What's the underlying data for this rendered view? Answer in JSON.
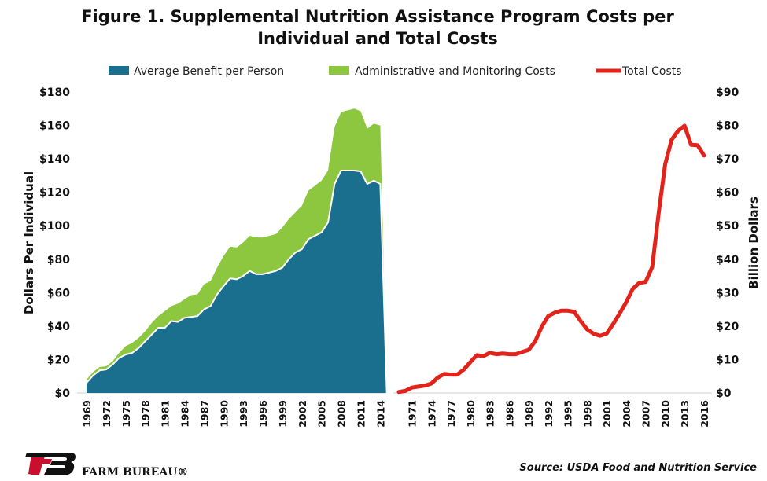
{
  "chart_data": {
    "type": "area",
    "title_line1": "Figure 1. Supplemental Nutrition Assistance Program Costs per",
    "title_line2": "Individual and Total Costs",
    "ylabel_left": "Dollars Per Individual",
    "ylabel_right": "Billion Dollars",
    "left_axis": {
      "min": 0,
      "max": 180,
      "ticks": [
        "$0",
        "$20",
        "$40",
        "$60",
        "$80",
        "$100",
        "$120",
        "$140",
        "$160",
        "$180"
      ]
    },
    "right_axis": {
      "min": 0,
      "max": 90,
      "ticks": [
        "$0",
        "$10",
        "$20",
        "$30",
        "$40",
        "$50",
        "$60",
        "$70",
        "$80",
        "$90"
      ]
    },
    "legend_position": "top",
    "legend": [
      "Average Benefit per Person",
      "Administrative and Monitoring Costs",
      "Total Costs"
    ],
    "colors": {
      "benefit": "#1a6f8f",
      "admin": "#8dc63f",
      "total": "#e2231a"
    },
    "per_person": {
      "x": [
        1969,
        1970,
        1971,
        1972,
        1973,
        1974,
        1975,
        1976,
        1977,
        1978,
        1979,
        1980,
        1981,
        1982,
        1983,
        1984,
        1985,
        1986,
        1987,
        1988,
        1989,
        1990,
        1991,
        1992,
        1993,
        1994,
        1995,
        1996,
        1997,
        1998,
        1999,
        2000,
        2001,
        2002,
        2003,
        2004,
        2005,
        2006,
        2007,
        2008,
        2009,
        2010,
        2011,
        2012,
        2013,
        2014,
        2015,
        2016
      ],
      "x_tick_labels": [
        "1969",
        "1972",
        "1975",
        "1978",
        "1981",
        "1984",
        "1987",
        "1990",
        "1993",
        "1996",
        "1999",
        "2002",
        "2005",
        "2008",
        "2011",
        "2014"
      ],
      "series": [
        {
          "name": "Average Benefit per Person",
          "values": [
            6,
            10.5,
            13.5,
            14,
            17,
            21,
            23,
            24,
            27,
            31,
            35,
            39,
            39,
            43,
            42.5,
            45,
            45.5,
            46,
            50,
            52,
            59,
            64,
            68.5,
            68,
            70,
            73,
            71,
            71,
            72,
            73,
            75,
            80,
            84,
            86,
            92,
            94,
            96,
            102,
            125,
            133,
            133,
            133,
            132.5,
            125,
            127,
            125,
            0,
            0
          ]
        },
        {
          "name": "Administrative and Monitoring Costs",
          "values": [
            2,
            2,
            2,
            2,
            2,
            3,
            5,
            6,
            6,
            6,
            7,
            7,
            10,
            9,
            11,
            11,
            13,
            13,
            15,
            15,
            16,
            18,
            19,
            19,
            20,
            21,
            22,
            22,
            22,
            22,
            24,
            24,
            24,
            26,
            29,
            30,
            31,
            31,
            34,
            35,
            36,
            37,
            36,
            33,
            34,
            35,
            0,
            0
          ]
        }
      ]
    },
    "total_costs": {
      "x_tick_labels": [
        "1971",
        "1974",
        "1977",
        "1980",
        "1983",
        "1986",
        "1989",
        "1992",
        "1995",
        "1998",
        "2001",
        "2004",
        "2007",
        "2010",
        "2013",
        "2016"
      ],
      "series": [
        {
          "name": "Total Costs",
          "x": [
            1969,
            1970,
            1971,
            1972,
            1973,
            1974,
            1975,
            1976,
            1977,
            1978,
            1979,
            1980,
            1981,
            1982,
            1983,
            1984,
            1985,
            1986,
            1987,
            1988,
            1989,
            1990,
            1991,
            1992,
            1993,
            1994,
            1995,
            1996,
            1997,
            1998,
            1999,
            2000,
            2001,
            2002,
            2003,
            2004,
            2005,
            2006,
            2007,
            2008,
            2009,
            2010,
            2011,
            2012,
            2013,
            2014,
            2015,
            2016
          ],
          "values": [
            0.3,
            0.6,
            1.6,
            1.9,
            2.2,
            2.8,
            4.6,
            5.7,
            5.5,
            5.5,
            7.0,
            9.2,
            11.3,
            11.0,
            12.0,
            11.6,
            11.8,
            11.6,
            11.6,
            12.3,
            12.9,
            15.5,
            19.8,
            23.0,
            24.0,
            24.6,
            24.6,
            24.3,
            21.5,
            19.0,
            17.7,
            17.1,
            17.8,
            20.6,
            23.8,
            27.1,
            31.1,
            32.9,
            33.2,
            37.6,
            53.6,
            68.3,
            75.7,
            78.4,
            79.9,
            74.2,
            74.1,
            71.0
          ]
        }
      ]
    }
  },
  "source": "Source: USDA Food and Nutrition Service",
  "logo": {
    "brand": "FARM BUREAU®"
  }
}
